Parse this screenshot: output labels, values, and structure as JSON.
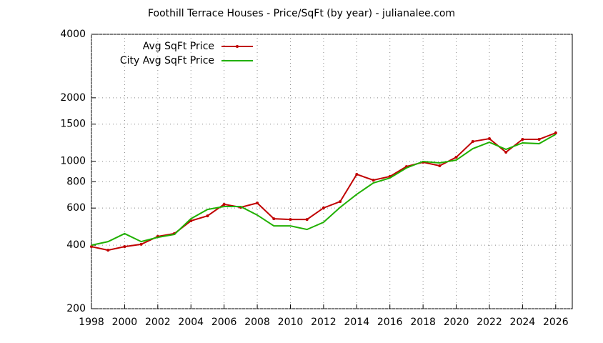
{
  "chart_data": {
    "type": "line",
    "title": "Foothill Terrace Houses - Price/SqFt (by year) - julianalee.com",
    "x": [
      1998,
      1999,
      2000,
      2001,
      2002,
      2003,
      2004,
      2005,
      2006,
      2007,
      2008,
      2009,
      2010,
      2011,
      2012,
      2013,
      2014,
      2015,
      2016,
      2017,
      2018,
      2019,
      2020,
      2021,
      2022,
      2023,
      2024,
      2025,
      2026
    ],
    "series": [
      {
        "name": "Avg SqFt Price",
        "color": "#c00000",
        "markers": true,
        "values": [
          394,
          379,
          394,
          404,
          440,
          454,
          522,
          551,
          625,
          605,
          634,
          534,
          530,
          530,
          601,
          644,
          867,
          814,
          847,
          944,
          990,
          952,
          1045,
          1241,
          1280,
          1104,
          1271,
          1271,
          1363
        ]
      },
      {
        "name": "City Avg SqFt Price",
        "color": "#20b000",
        "markers": false,
        "values": [
          400,
          416,
          454,
          416,
          436,
          450,
          534,
          591,
          610,
          610,
          556,
          494,
          494,
          475,
          514,
          605,
          697,
          789,
          833,
          930,
          998,
          982,
          1013,
          1148,
          1231,
          1139,
          1222,
          1212,
          1342
        ]
      }
    ],
    "xlim": [
      1998,
      2027
    ],
    "xticks": [
      1998,
      2000,
      2002,
      2004,
      2006,
      2008,
      2010,
      2012,
      2014,
      2016,
      2018,
      2020,
      2022,
      2024,
      2026
    ],
    "ylim": [
      200,
      4000
    ],
    "log_y": true,
    "yticks": [
      200,
      400,
      600,
      800,
      1000,
      1500,
      2000,
      4000
    ],
    "grid": true,
    "legend": "top-left"
  }
}
